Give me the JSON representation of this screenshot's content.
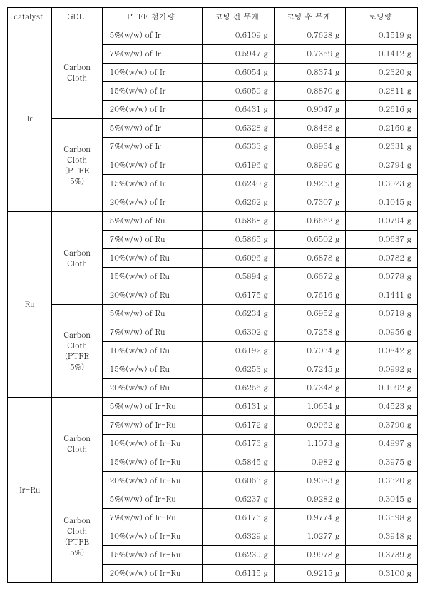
{
  "table": {
    "headers": [
      "catalyst",
      "GDL",
      "PTFE 첨가량",
      "코팅 전 무게",
      "코팅 후 무게",
      "로딩량"
    ],
    "groups": [
      {
        "catalyst": "Ir",
        "subgroups": [
          {
            "gdl": "Carbon Cloth",
            "rows": [
              {
                "ptfe": "5%(w/w) of Ir",
                "before": "0.6109 g",
                "after": "0.7628 g",
                "load": "0.1519 g"
              },
              {
                "ptfe": "7%(w/w) of Ir",
                "before": "0.5947 g",
                "after": "0.7359 g",
                "load": "0.1412 g"
              },
              {
                "ptfe": "10%(w/w) of Ir",
                "before": "0.6054 g",
                "after": "0.8374 g",
                "load": "0.2320 g"
              },
              {
                "ptfe": "15%(w/w) of Ir",
                "before": "0.6059 g",
                "after": "0.8870 g",
                "load": "0.2811 g"
              },
              {
                "ptfe": "20%(w/w) of Ir",
                "before": "0.6431 g",
                "after": "0.9047 g",
                "load": "0.2616 g"
              }
            ]
          },
          {
            "gdl": "Carbon Cloth (PTFE 5%)",
            "rows": [
              {
                "ptfe": "5%(w/w) of Ir",
                "before": "0.6328 g",
                "after": "0.8488 g",
                "load": "0.2160 g"
              },
              {
                "ptfe": "7%(w/w) of Ir",
                "before": "0.6333 g",
                "after": "0.8964 g",
                "load": "0.2631 g"
              },
              {
                "ptfe": "10%(w/w) of Ir",
                "before": "0.6196 g",
                "after": "0.8990 g",
                "load": "0.2794 g"
              },
              {
                "ptfe": "15%(w/w) of Ir",
                "before": "0.6240 g",
                "after": "0.9263 g",
                "load": "0.3023 g"
              },
              {
                "ptfe": "20%(w/w) of Ir",
                "before": "0.6262 g",
                "after": "0.7307 g",
                "load": "0.1045 g"
              }
            ]
          }
        ]
      },
      {
        "catalyst": "Ru",
        "subgroups": [
          {
            "gdl": "Carbon Cloth",
            "rows": [
              {
                "ptfe": "5%(w/w) of Ru",
                "before": "0.5868 g",
                "after": "0.6662 g",
                "load": "0.0794 g"
              },
              {
                "ptfe": "7%(w/w) of Ru",
                "before": "0.5865 g",
                "after": "0.6502 g",
                "load": "0.0637 g"
              },
              {
                "ptfe": "10%(w/w) of Ru",
                "before": "0.6096 g",
                "after": "0.6878 g",
                "load": "0.0782 g"
              },
              {
                "ptfe": "15%(w/w) of Ru",
                "before": "0.5894 g",
                "after": "0.6672 g",
                "load": "0.0778 g"
              },
              {
                "ptfe": "20%(w/w) of Ru",
                "before": "0.6175 g",
                "after": "0.7616 g",
                "load": "0.1441 g"
              }
            ]
          },
          {
            "gdl": "Carbon Cloth (PTFE 5%)",
            "rows": [
              {
                "ptfe": "5%(w/w) of Ru",
                "before": "0.6234 g",
                "after": "0.6952 g",
                "load": "0.0718 g"
              },
              {
                "ptfe": "7%(w/w) of Ru",
                "before": "0.6302 g",
                "after": "0.7258 g",
                "load": "0.0956 g"
              },
              {
                "ptfe": "10%(w/w) of Ru",
                "before": "0.6192 g",
                "after": "0.7034 g",
                "load": "0.0842 g"
              },
              {
                "ptfe": "15%(w/w) of Ru",
                "before": "0.6253 g",
                "after": "0.7245 g",
                "load": "0.0992 g"
              },
              {
                "ptfe": "20%(w/w) of Ru",
                "before": "0.6256 g",
                "after": "0.7348 g",
                "load": "0.1092 g"
              }
            ]
          }
        ]
      },
      {
        "catalyst": "Ir-Ru",
        "subgroups": [
          {
            "gdl": "Carbon Cloth",
            "rows": [
              {
                "ptfe": "5%(w/w) of Ir-Ru",
                "before": "0.6131 g",
                "after": "1.0654 g",
                "load": "0.4523 g"
              },
              {
                "ptfe": "7%(w/w) of Ir-Ru",
                "before": "0.6172 g",
                "after": "0.9962 g",
                "load": "0.3790 g"
              },
              {
                "ptfe": "10%(w/w) of Ir-Ru",
                "before": "0.6176 g",
                "after": "1.1073 g",
                "load": "0.4897 g"
              },
              {
                "ptfe": "15%(w/w) of Ir-Ru",
                "before": "0.5845 g",
                "after": "0.982 g",
                "load": "0.3975 g"
              },
              {
                "ptfe": "20%(w/w) of Ir-Ru",
                "before": "0.6063 g",
                "after": "0.9383 g",
                "load": "0.3320 g"
              }
            ]
          },
          {
            "gdl": "Carbon Cloth (PTFE 5%)",
            "rows": [
              {
                "ptfe": "5%(w/w) of Ir-Ru",
                "before": "0.6237 g",
                "after": "0.9282 g",
                "load": "0.3045 g"
              },
              {
                "ptfe": "7%(w/w) of Ir-Ru",
                "before": "0.6176 g",
                "after": "0.9774 g",
                "load": "0.3598 g"
              },
              {
                "ptfe": "10%(w/w) of Ir-Ru",
                "before": "0.6329 g",
                "after": "1.0277 g",
                "load": "0.3948 g"
              },
              {
                "ptfe": "15%(w/w) of Ir-Ru",
                "before": "0.6239 g",
                "after": "0.9978 g",
                "load": "0.3739 g"
              },
              {
                "ptfe": "20%(w/w) of Ir-Ru",
                "before": "0.6115 g",
                "after": "0.9215 g",
                "load": "0.3100 g"
              }
            ]
          }
        ]
      }
    ]
  }
}
